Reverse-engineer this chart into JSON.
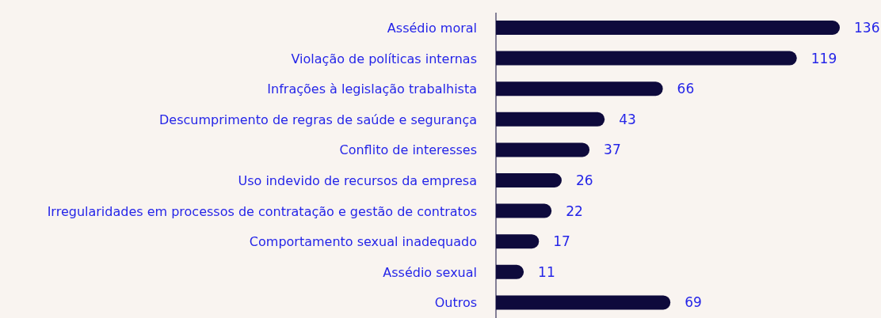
{
  "chart_data": {
    "type": "bar",
    "orientation": "horizontal",
    "categories": [
      "Assédio moral",
      "Violação de políticas internas",
      "Infrações à legislação trabalhista",
      "Descumprimento de regras de saúde e segurança",
      "Conflito de interesses",
      "Uso indevido de recursos da empresa",
      "Irregularidades em processos de contratação e gestão de contratos",
      "Comportamento sexual inadequado",
      "Assédio sexual",
      "Outros"
    ],
    "values": [
      136,
      119,
      66,
      43,
      37,
      26,
      22,
      17,
      11,
      69
    ],
    "color": "#0e0a3c",
    "data_labels": true
  }
}
